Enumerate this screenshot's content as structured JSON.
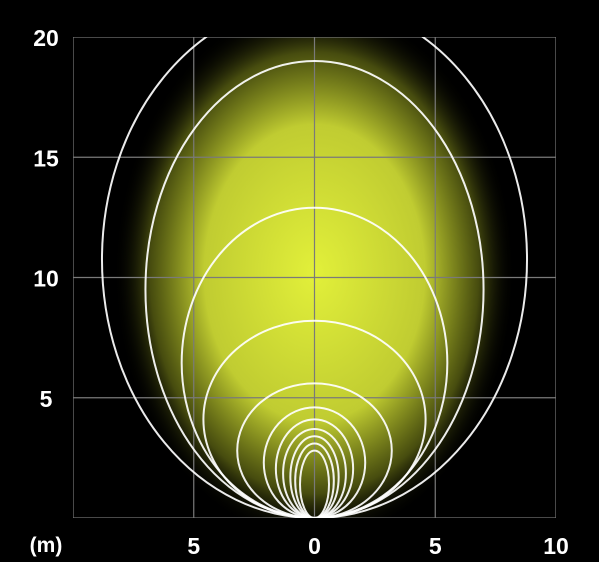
{
  "chart_data": {
    "type": "line",
    "title": "",
    "xlabel": "",
    "ylabel": "",
    "unit_label": "(m)",
    "xlim": [
      -10,
      10
    ],
    "ylim": [
      0,
      20
    ],
    "grid": true,
    "x_ticks": [
      {
        "value": -5,
        "label": "5"
      },
      {
        "value": 0,
        "label": "0"
      },
      {
        "value": 5,
        "label": "5"
      },
      {
        "value": 10,
        "label": "10"
      }
    ],
    "y_ticks": [
      {
        "value": 5,
        "label": "5"
      },
      {
        "value": 10,
        "label": "10"
      },
      {
        "value": 15,
        "label": "15"
      },
      {
        "value": 20,
        "label": "20"
      }
    ],
    "isolines": [
      {
        "half_width": 8.8,
        "height": 21.5
      },
      {
        "half_width": 7.0,
        "height": 19.0
      },
      {
        "half_width": 5.5,
        "height": 12.9
      },
      {
        "half_width": 4.6,
        "height": 8.2
      },
      {
        "half_width": 3.2,
        "height": 5.6
      },
      {
        "half_width": 2.1,
        "height": 4.6
      },
      {
        "half_width": 1.6,
        "height": 4.1
      },
      {
        "half_width": 1.3,
        "height": 3.7
      },
      {
        "half_width": 1.0,
        "height": 3.4
      },
      {
        "half_width": 0.8,
        "height": 3.1
      },
      {
        "half_width": 0.6,
        "height": 2.8
      }
    ],
    "colors": {
      "background": "#000000",
      "grid": "#7a7a7a",
      "isoline": "#ffffff",
      "glow_core": "#e2f03a",
      "glow_mid": "#c9d82a"
    }
  }
}
